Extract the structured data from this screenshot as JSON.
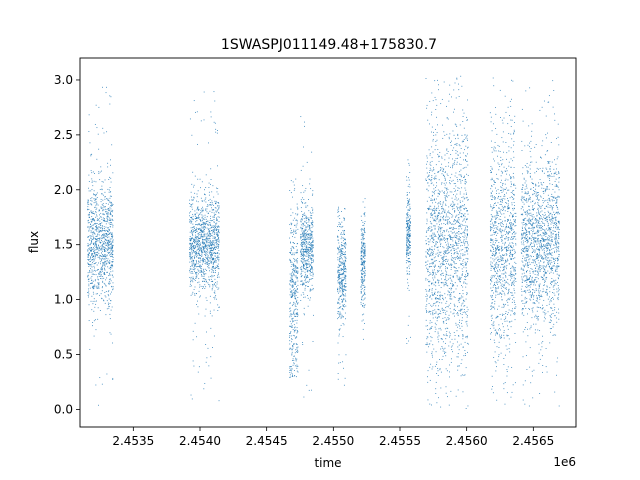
{
  "chart_data": {
    "type": "scatter",
    "title": "1SWASPJ011149.48+175830.7",
    "xlabel": "time",
    "ylabel": "flux",
    "x_offset_label": "1e6",
    "xlim": [
      2.4531,
      2.45682
    ],
    "ylim": [
      -0.16,
      3.2
    ],
    "x_ticks": [
      2.4535,
      2.454,
      2.4545,
      2.455,
      2.4555,
      2.456,
      2.4565
    ],
    "x_tick_labels": [
      "2.4535",
      "2.4540",
      "2.4545",
      "2.4550",
      "2.4555",
      "2.4560",
      "2.4565"
    ],
    "y_ticks": [
      0.0,
      0.5,
      1.0,
      1.5,
      2.0,
      2.5,
      3.0
    ],
    "y_tick_labels": [
      "0.0",
      "0.5",
      "1.0",
      "1.5",
      "2.0",
      "2.5",
      "3.0"
    ],
    "grid": false,
    "marker_color": "#1f77b4",
    "clusters": [
      {
        "x_center": 2.45325,
        "x_spread": 6e-05,
        "y_center": 1.5,
        "y_spread": 0.28,
        "y_min": -0.02,
        "y_max": 2.98
      },
      {
        "x_center": 2.45403,
        "x_spread": 7e-05,
        "y_center": 1.5,
        "y_spread": 0.22,
        "y_min": 0.05,
        "y_max": 2.9
      },
      {
        "x_center": 2.4547,
        "x_spread": 2e-05,
        "y_center": 1.0,
        "y_spread": 0.4,
        "y_min": 0.28,
        "y_max": 2.13
      },
      {
        "x_center": 2.4548,
        "x_spread": 3e-05,
        "y_center": 1.5,
        "y_spread": 0.2,
        "y_min": 0.04,
        "y_max": 2.69
      },
      {
        "x_center": 2.45506,
        "x_spread": 2e-05,
        "y_center": 1.25,
        "y_spread": 0.22,
        "y_min": 0.16,
        "y_max": 1.85
      },
      {
        "x_center": 2.45522,
        "x_spread": 1e-05,
        "y_center": 1.35,
        "y_spread": 0.22,
        "y_min": 0.62,
        "y_max": 1.93
      },
      {
        "x_center": 2.45556,
        "x_spread": 1e-05,
        "y_center": 1.6,
        "y_spread": 0.2,
        "y_min": 0.51,
        "y_max": 2.35
      },
      {
        "x_center": 2.45585,
        "x_spread": 0.0001,
        "y_center": 1.5,
        "y_spread": 0.55,
        "y_min": 0.0,
        "y_max": 3.04
      },
      {
        "x_center": 2.45627,
        "x_spread": 6e-05,
        "y_center": 1.5,
        "y_spread": 0.45,
        "y_min": 0.0,
        "y_max": 3.03
      },
      {
        "x_center": 2.45655,
        "x_spread": 9e-05,
        "y_center": 1.5,
        "y_spread": 0.38,
        "y_min": 0.0,
        "y_max": 3.0
      }
    ]
  }
}
